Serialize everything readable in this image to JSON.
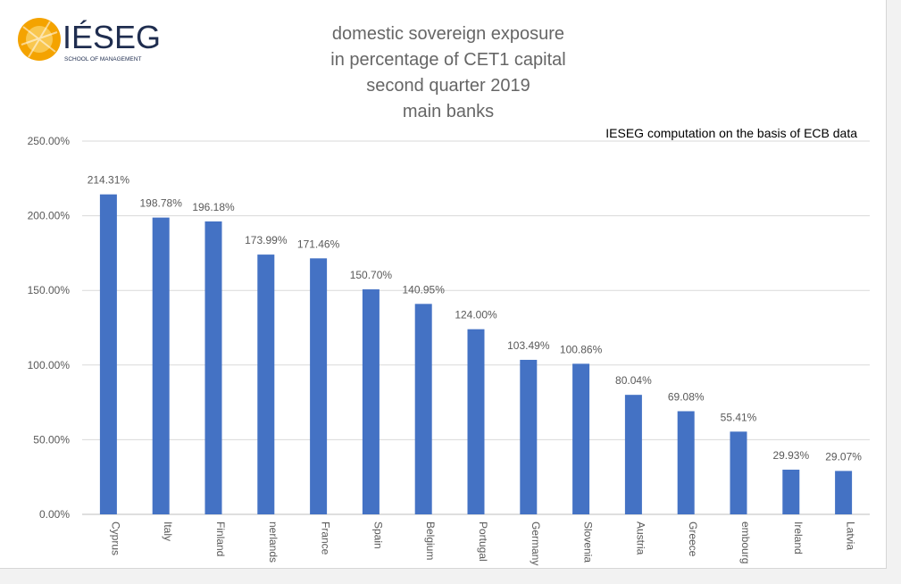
{
  "logo": {
    "wordmark": "IÉSEG",
    "subline": "SCHOOL OF MANAGEMENT"
  },
  "title_lines": [
    "domestic sovereign exposure",
    "in percentage of CET1 capital",
    "second quarter 2019",
    "main banks"
  ],
  "note": "IESEG computation on the basis of ECB data",
  "colors": {
    "bar": "#4472c4",
    "grid": "#d9d9d9",
    "text": "#595959",
    "logo_orange": "#f4a300"
  },
  "chart_data": {
    "type": "bar",
    "title": "",
    "xlabel": "",
    "ylabel": "",
    "ylim": [
      0,
      250
    ],
    "y_ticks": [
      0,
      50,
      100,
      150,
      200,
      250
    ],
    "y_tick_labels": [
      "0.00%",
      "50.00%",
      "100.00%",
      "150.00%",
      "200.00%",
      "250.00%"
    ],
    "grid": true,
    "categories": [
      "Cyprus",
      "Italy",
      "Finland",
      "Netherlands",
      "France",
      "Spain",
      "Belgium",
      "Portugal",
      "Germany",
      "Slovenia",
      "Austria",
      "Greece",
      "Luxembourg",
      "Ireland",
      "Latvia"
    ],
    "category_labels": [
      "Cyprus",
      "Italy",
      "Finland",
      "nerlands",
      "France",
      "Spain",
      "Belgium",
      "Portugal",
      "Germany",
      "Slovenia",
      "Austria",
      "Greece",
      "embourg",
      "Ireland",
      "Latvia"
    ],
    "values": [
      214.31,
      198.78,
      196.18,
      173.99,
      171.46,
      150.7,
      140.95,
      124.0,
      103.49,
      100.86,
      80.04,
      69.08,
      55.41,
      29.93,
      29.07
    ],
    "data_labels": [
      "214.31%",
      "198.78%",
      "196.18%",
      "173.99%",
      "171.46%",
      "150.70%",
      "140.95%",
      "124.00%",
      "103.49%",
      "100.86%",
      "80.04%",
      "69.08%",
      "55.41%",
      "29.93%",
      "29.07%"
    ]
  }
}
